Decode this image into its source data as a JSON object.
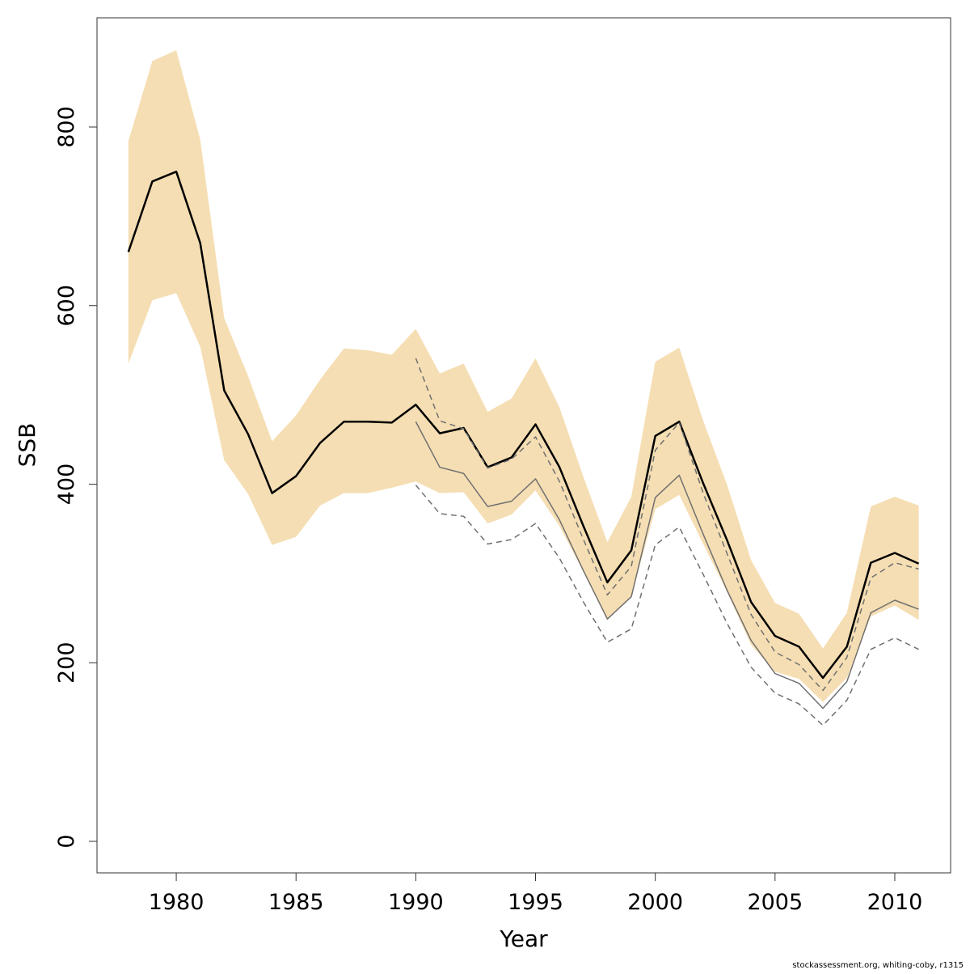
{
  "chart_data": {
    "type": "line",
    "x_label": "Year",
    "y_label": "SSB",
    "footnote": "stockassessment.org, whiting-coby, r1315",
    "x": [
      1978,
      1979,
      1980,
      1981,
      1982,
      1983,
      1984,
      1985,
      1986,
      1987,
      1988,
      1989,
      1990,
      1991,
      1992,
      1993,
      1994,
      1995,
      1996,
      1997,
      1998,
      1999,
      2000,
      2001,
      2002,
      2003,
      2004,
      2005,
      2006,
      2007,
      2008,
      2009,
      2010,
      2011
    ],
    "band": {
      "color": "#f5deb3",
      "upper": [
        784,
        874,
        886,
        786,
        586,
        521,
        448,
        477,
        517,
        552,
        550,
        545,
        574,
        524,
        535,
        481,
        496,
        541,
        486,
        408,
        335,
        386,
        537,
        553,
        471,
        399,
        315,
        267,
        255,
        216,
        256,
        375,
        386,
        376
      ],
      "lower": [
        535,
        606,
        614,
        554,
        427,
        389,
        332,
        341,
        376,
        390,
        390,
        396,
        403,
        390,
        391,
        356,
        366,
        393,
        353,
        302,
        248,
        275,
        372,
        388,
        333,
        279,
        220,
        190,
        182,
        156,
        183,
        252,
        264,
        248
      ]
    },
    "series": [
      {
        "color": "#000000",
        "dashed": false,
        "values": [
          660,
          739,
          750,
          670,
          505,
          456,
          390,
          409,
          446,
          470,
          470,
          469,
          489,
          457,
          463,
          419,
          430,
          467,
          419,
          353,
          290,
          326,
          454,
          470,
          401,
          337,
          268,
          230,
          218,
          183,
          218,
          312,
          323,
          311
        ]
      },
      {
        "color": "#707070",
        "dashed": false,
        "values": [
          null,
          null,
          null,
          null,
          null,
          null,
          null,
          null,
          null,
          null,
          null,
          null,
          470,
          419,
          412,
          375,
          381,
          406,
          360,
          303,
          249,
          274,
          385,
          410,
          344,
          281,
          225,
          188,
          177,
          149,
          179,
          256,
          270,
          260
        ]
      },
      {
        "color": "#707070",
        "dashed": true,
        "values": [
          null,
          null,
          null,
          null,
          null,
          null,
          null,
          null,
          null,
          null,
          null,
          null,
          541,
          471,
          462,
          418,
          428,
          453,
          403,
          338,
          276,
          308,
          438,
          469,
          390,
          322,
          254,
          212,
          198,
          169,
          206,
          295,
          312,
          305
        ]
      },
      {
        "color": "#707070",
        "dashed": true,
        "values": [
          null,
          null,
          null,
          null,
          null,
          null,
          null,
          null,
          null,
          null,
          null,
          null,
          399,
          367,
          364,
          333,
          338,
          356,
          317,
          268,
          223,
          238,
          332,
          352,
          299,
          244,
          195,
          166,
          154,
          130,
          158,
          215,
          228,
          215
        ]
      }
    ],
    "xlim": [
      1976.69,
      2012.33
    ],
    "ylim": [
      -35.3,
      922.3
    ],
    "xticks": [
      1980,
      1985,
      1990,
      1995,
      2000,
      2005,
      2010
    ],
    "yticks": [
      0,
      200,
      400,
      600,
      800
    ]
  }
}
